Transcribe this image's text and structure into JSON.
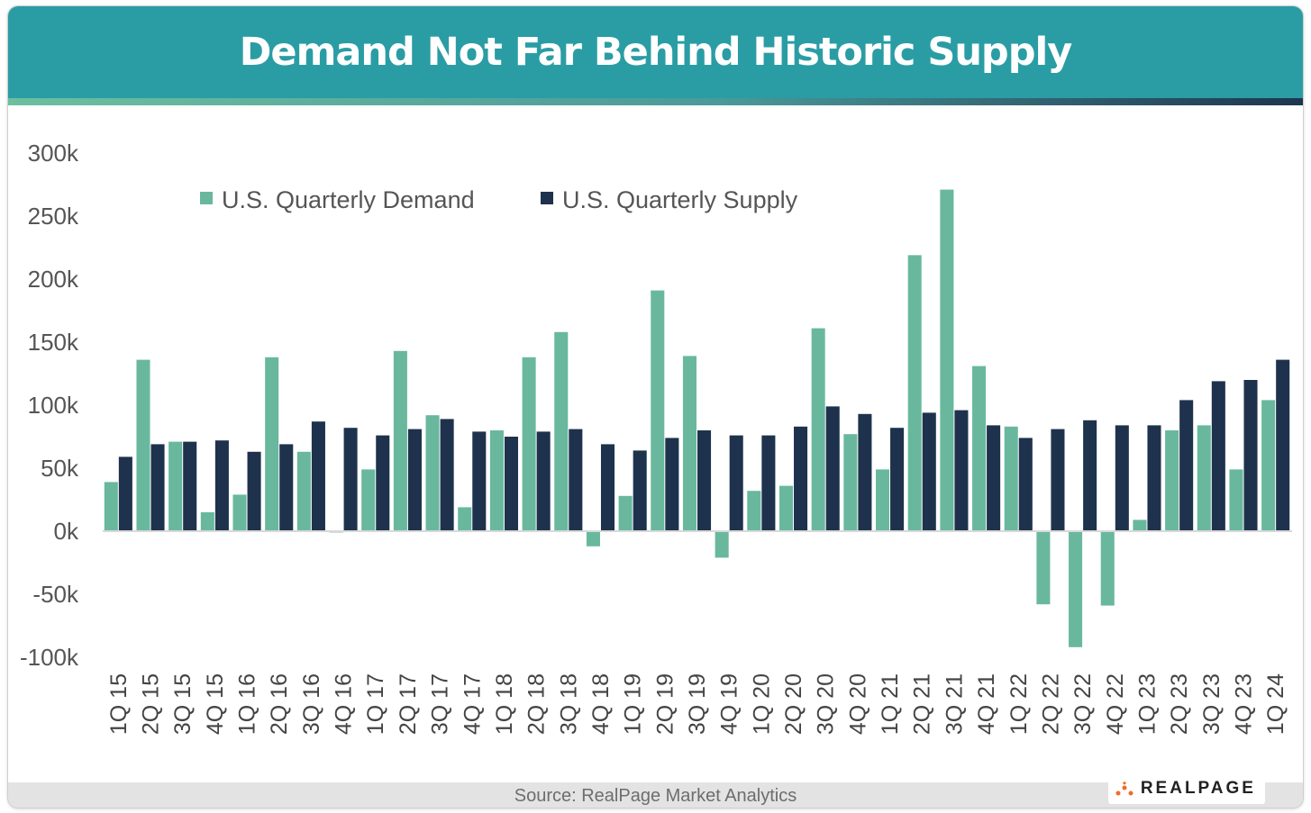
{
  "title": "Demand Not Far Behind Historic Supply",
  "source": "Source: RealPage Market Analytics",
  "logo": "REALPAGE",
  "chart_data": {
    "type": "bar",
    "title": "Demand Not Far Behind Historic Supply",
    "xlabel": "",
    "ylabel": "",
    "ylim": [
      -100000,
      300000
    ],
    "yticks": [
      -100000,
      -50000,
      0,
      50000,
      100000,
      150000,
      200000,
      250000,
      300000
    ],
    "ytick_labels": [
      "-100k",
      "-50k",
      "0k",
      "50k",
      "100k",
      "150k",
      "200k",
      "250k",
      "300k"
    ],
    "grid": false,
    "legend": "top-left",
    "categories": [
      "1Q 15",
      "2Q 15",
      "3Q 15",
      "4Q 15",
      "1Q 16",
      "2Q 16",
      "3Q 16",
      "4Q 16",
      "1Q 17",
      "2Q 17",
      "3Q 17",
      "4Q 17",
      "1Q 18",
      "2Q 18",
      "3Q 18",
      "4Q 18",
      "1Q 19",
      "2Q 19",
      "3Q 19",
      "4Q 19",
      "1Q 20",
      "2Q 20",
      "3Q 20",
      "4Q 20",
      "1Q 21",
      "2Q 21",
      "3Q 21",
      "4Q 21",
      "1Q 22",
      "2Q 22",
      "3Q 22",
      "4Q 22",
      "1Q 23",
      "2Q 23",
      "3Q 23",
      "4Q 23",
      "1Q 24"
    ],
    "series": [
      {
        "name": "U.S. Quarterly Demand",
        "color": "#69b89e",
        "values": [
          39000,
          136000,
          71000,
          15000,
          29000,
          138000,
          63000,
          -1000,
          49000,
          143000,
          92000,
          19000,
          80000,
          138000,
          158000,
          -12000,
          28000,
          191000,
          139000,
          -21000,
          32000,
          36000,
          161000,
          77000,
          49000,
          219000,
          271000,
          131000,
          83000,
          -58000,
          -92000,
          -59000,
          9000,
          80000,
          84000,
          49000,
          104000
        ]
      },
      {
        "name": "U.S. Quarterly Supply",
        "color": "#1e324d",
        "values": [
          59000,
          69000,
          71000,
          72000,
          63000,
          69000,
          87000,
          82000,
          76000,
          81000,
          89000,
          79000,
          75000,
          79000,
          81000,
          69000,
          64000,
          74000,
          80000,
          76000,
          76000,
          83000,
          99000,
          93000,
          82000,
          94000,
          96000,
          84000,
          74000,
          81000,
          88000,
          84000,
          84000,
          104000,
          119000,
          120000,
          136000
        ]
      }
    ]
  }
}
